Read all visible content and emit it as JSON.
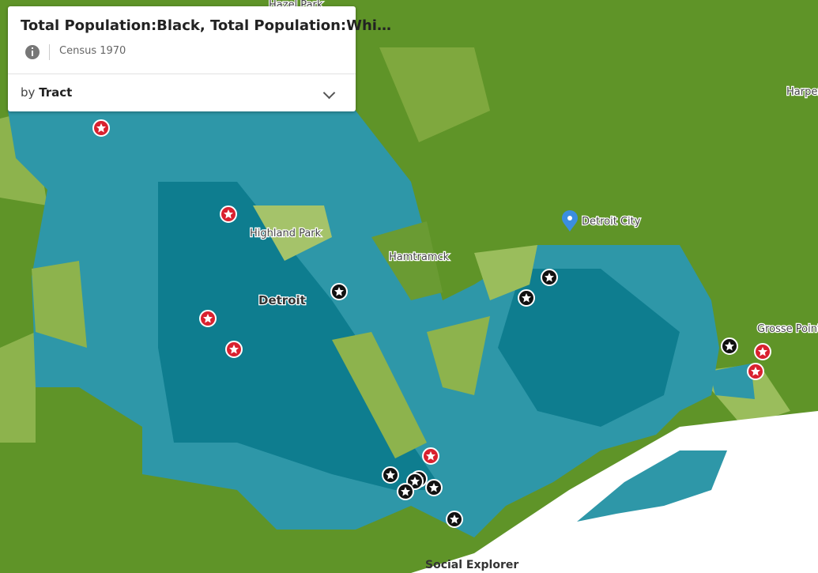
{
  "panel": {
    "title": "Total Population:Black, Total Population:Whi…",
    "source": "Census 1970",
    "by_label": "by",
    "geography": "Tract"
  },
  "places": {
    "hazel_park": "Hazel Park",
    "highland_park": "Highland Park",
    "detroit": "Detroit",
    "hamtramck": "Hamtramck",
    "detroit_city": "Detroit City",
    "harper": "Harper",
    "grosse_pointe": "Grosse Pointe"
  },
  "attribution": "Social Explorer"
}
